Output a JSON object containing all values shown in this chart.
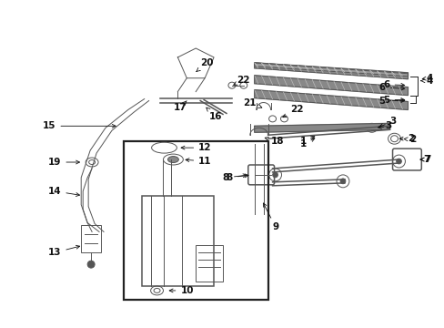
{
  "fig_bg": "#ffffff",
  "ax_bg": "#ffffff",
  "line_color": "#555555",
  "dark": "#222222",
  "label_color": "#111111",
  "label_fontsize": 7.5,
  "label_arrow_lw": 0.6,
  "components": "wiper_washer_diagram"
}
